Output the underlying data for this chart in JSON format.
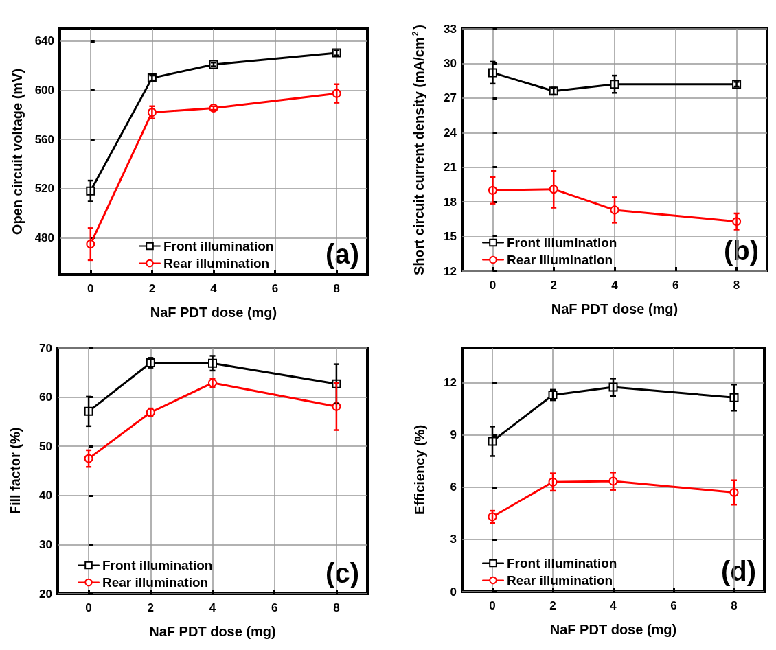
{
  "chart_data": [
    {
      "type": "line",
      "xlabel": "NaF PDT dose (mg)",
      "ylabel": "Open circuit voltage (mV)",
      "x": [
        0,
        2,
        4,
        8
      ],
      "xlim": [
        -1,
        9
      ],
      "xticks": [
        0,
        2,
        4,
        6,
        8
      ],
      "ylim": [
        450,
        650
      ],
      "yticks": [
        480,
        520,
        560,
        600,
        640
      ],
      "grid": true,
      "legend": "bottom",
      "annotations": [
        "(a)"
      ],
      "series": [
        {
          "name": "Front illumination",
          "color": "#000000",
          "marker": "square",
          "values": [
            518,
            610,
            621,
            630.4
          ],
          "errors": [
            8.5,
            2,
            1.5,
            2
          ]
        },
        {
          "name": "Rear illumination",
          "color": "#ff0000",
          "marker": "circle",
          "values": [
            474.8,
            582,
            585.5,
            597.4
          ],
          "errors": [
            13,
            5,
            1.5,
            7.5
          ]
        }
      ]
    },
    {
      "type": "line",
      "xlabel": "NaF PDT dose (mg)",
      "ylabel": "Short circuit current density (mA/cm$^{2}$)",
      "x": [
        0,
        2,
        4,
        8
      ],
      "xlim": [
        -1,
        9
      ],
      "xticks": [
        0,
        2,
        4,
        6,
        8
      ],
      "ylim": [
        12,
        33
      ],
      "yticks": [
        12,
        15,
        18,
        21,
        24,
        27,
        30,
        33
      ],
      "grid": true,
      "legend": "bottom left",
      "annotations": [
        "(b)"
      ],
      "series": [
        {
          "name": "Front illumination",
          "color": "#000000",
          "marker": "square",
          "values": [
            29.2,
            27.6,
            28.2,
            28.2
          ],
          "errors": [
            0.95,
            0.3,
            0.75,
            0.2
          ]
        },
        {
          "name": "Rear illumination",
          "color": "#ff0000",
          "marker": "circle",
          "values": [
            19.0,
            19.1,
            17.3,
            16.3
          ],
          "errors": [
            1.15,
            1.6,
            1.1,
            0.7
          ]
        }
      ]
    },
    {
      "type": "line",
      "xlabel": "NaF PDT dose (mg)",
      "ylabel": "Fill factor (%)",
      "x": [
        0,
        2,
        4,
        8
      ],
      "xlim": [
        -1,
        9
      ],
      "xticks": [
        0,
        2,
        4,
        6,
        8
      ],
      "ylim": [
        20,
        70
      ],
      "yticks": [
        20,
        30,
        40,
        50,
        60,
        70
      ],
      "grid": true,
      "legend": "bottom left",
      "annotations": [
        "(c)"
      ],
      "series": [
        {
          "name": "Front illumination",
          "color": "#000000",
          "marker": "square",
          "values": [
            57.1,
            67,
            66.9,
            62.7
          ],
          "errors": [
            3,
            1,
            1.5,
            4
          ]
        },
        {
          "name": "Rear illumination",
          "color": "#ff0000",
          "marker": "circle",
          "values": [
            47.5,
            56.9,
            62.9,
            58.1
          ],
          "errors": [
            1.7,
            0.8,
            0.9,
            4.8
          ]
        }
      ]
    },
    {
      "type": "line",
      "xlabel": "NaF PDT dose (mg)",
      "ylabel": "Efficiency (%)",
      "x": [
        0,
        2,
        4,
        8
      ],
      "xlim": [
        -1,
        9
      ],
      "xticks": [
        0,
        2,
        4,
        6,
        8
      ],
      "ylim": [
        0,
        14
      ],
      "yticks": [
        0,
        3,
        6,
        9,
        12
      ],
      "grid": true,
      "legend": "bottom left",
      "annotations": [
        "(d)"
      ],
      "series": [
        {
          "name": "Front illumination",
          "color": "#000000",
          "marker": "square",
          "values": [
            8.64,
            11.3,
            11.75,
            11.15
          ],
          "errors": [
            0.85,
            0.3,
            0.5,
            0.75
          ]
        },
        {
          "name": "Rear illumination",
          "color": "#ff0000",
          "marker": "circle",
          "values": [
            4.3,
            6.3,
            6.35,
            5.7
          ],
          "errors": [
            0.35,
            0.5,
            0.5,
            0.7
          ]
        }
      ]
    }
  ]
}
